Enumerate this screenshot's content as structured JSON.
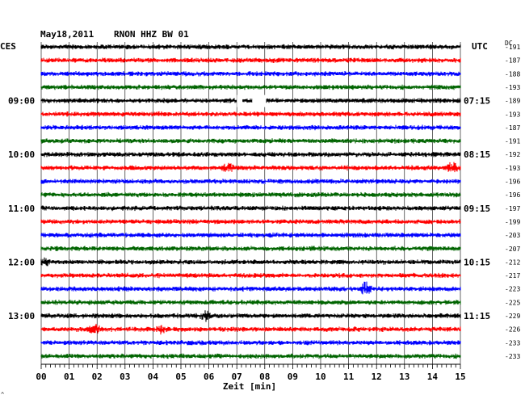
{
  "header": {
    "date": "May18,2011",
    "station": "RNON HHZ BW 01",
    "left_timezone": "CES",
    "right_timezone": "UTC",
    "dc_label": "DC"
  },
  "x_axis": {
    "label": "Zeit [min]",
    "ticks": [
      "00",
      "01",
      "02",
      "03",
      "04",
      "05",
      "06",
      "07",
      "08",
      "09",
      "10",
      "11",
      "12",
      "13",
      "14",
      "15"
    ]
  },
  "left_time_labels": [
    "09:00",
    "10:00",
    "11:00",
    "12:00",
    "13:00"
  ],
  "right_time_labels": [
    "07:15",
    "08:15",
    "09:15",
    "10:15",
    "11:15"
  ],
  "corner_mark": "^",
  "chart_data": {
    "type": "line",
    "title": "May18,2011   RNON HHZ BW 01",
    "xlabel": "Zeit [min]",
    "xlim": [
      0,
      15
    ],
    "trace_minutes": 15,
    "trace_colors": [
      "#000000",
      "#ff0000",
      "#0000ff",
      "#006400"
    ],
    "dc_offsets": [
      -191,
      -187,
      -188,
      -193,
      -189,
      -193,
      -187,
      -191,
      -192,
      -193,
      -196,
      -196,
      -197,
      -199,
      -203,
      -207,
      -212,
      -217,
      -223,
      -225,
      -229,
      -226,
      -233,
      -233
    ],
    "gaps": [
      {
        "trace": 4,
        "from_min": 7.55,
        "to_min": 8.05
      },
      {
        "trace": 4,
        "from_min": 7.0,
        "to_min": 7.2
      }
    ],
    "events": [
      {
        "trace": 9,
        "minute": 6.7,
        "amplitude": 5
      },
      {
        "trace": 9,
        "minute": 14.7,
        "amplitude": 6
      },
      {
        "trace": 18,
        "minute": 11.6,
        "amplitude": 8
      },
      {
        "trace": 21,
        "minute": 1.9,
        "amplitude": 6
      },
      {
        "trace": 21,
        "minute": 4.3,
        "amplitude": 4
      },
      {
        "trace": 20,
        "minute": 5.9,
        "amplitude": 5
      },
      {
        "trace": 16,
        "minute": 0.15,
        "amplitude": 4
      }
    ]
  }
}
